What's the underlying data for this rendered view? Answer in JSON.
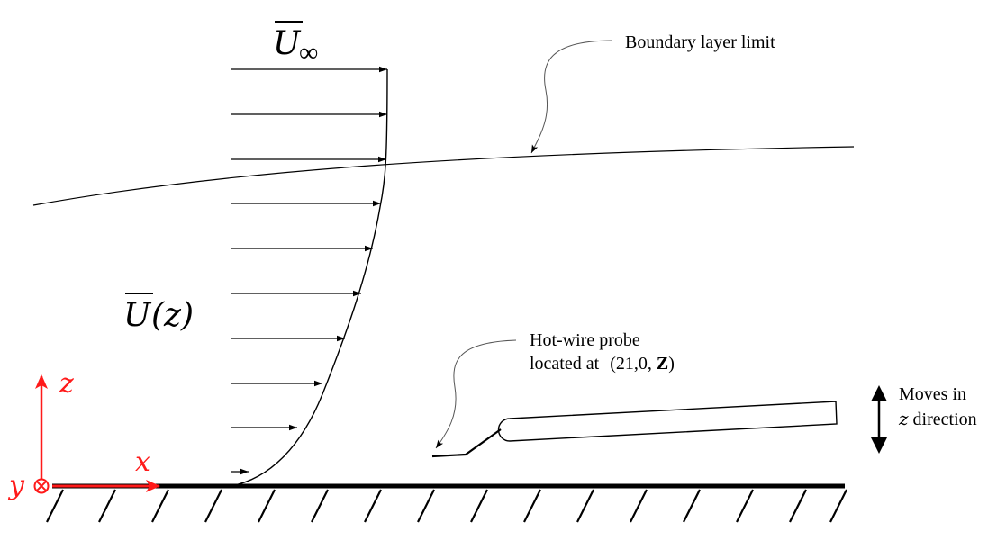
{
  "labels": {
    "u_inf_symbol": "U",
    "u_inf_subscript": "∞",
    "u_z_symbol": "U",
    "u_z_arg": "(z)",
    "boundary_layer": "Boundary layer limit",
    "probe_line1": "Hot-wire probe",
    "probe_line2_prefix": "located at",
    "probe_coords_open": "(21,0, ",
    "probe_coords_z": "Z",
    "probe_coords_close": ")",
    "moves_line1": "Moves in",
    "moves_line2_var": "z",
    "moves_line2_rest": " direction"
  },
  "axes": {
    "x_label": "x",
    "y_label": "y",
    "z_label": "z",
    "color": "#ff1a1a"
  },
  "colors": {
    "ink": "#000000",
    "axis": "#ff1a1a"
  }
}
